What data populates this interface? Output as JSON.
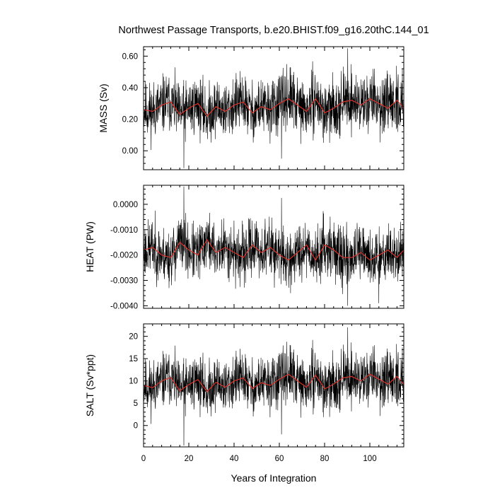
{
  "title": "Northwest Passage Transports, b.e20.BHIST.f09_g16.20thC.144_01",
  "xlabel": "Years of Integration",
  "chart_data": [
    {
      "type": "line",
      "panel": "mass",
      "ylabel": "MASS (Sv)",
      "ylim": [
        -0.12,
        0.66
      ],
      "yticks": [
        0.0,
        0.2,
        0.4,
        0.6
      ],
      "ytick_labels": [
        "0.00",
        "0.20",
        "0.40",
        "0.60"
      ],
      "xlim": [
        0,
        115
      ],
      "xticks": [
        0,
        20,
        40,
        60,
        80,
        100
      ],
      "xtick_labels": [
        "0",
        "20",
        "40",
        "60",
        "80",
        "100"
      ],
      "series": [
        {
          "role": "monthly",
          "color": "#000000",
          "mean": 0.27,
          "amplitude": 0.09,
          "x_start": 0,
          "x_end": 115,
          "x_step": 0.0833,
          "noise_seed": 11,
          "spikes": [
            {
              "x": 17.8,
              "y": -0.11
            },
            {
              "x": 61.0,
              "y": -0.05
            },
            {
              "x": 90.2,
              "y": 0.65
            },
            {
              "x": 65.0,
              "y": 0.53
            },
            {
              "x": 102.0,
              "y": 0.52
            }
          ]
        },
        {
          "role": "smoothed",
          "color": "#d8322b",
          "x": [
            0,
            4,
            8,
            12,
            16,
            20,
            24,
            28,
            32,
            36,
            40,
            44,
            48,
            52,
            56,
            60,
            64,
            68,
            72,
            76,
            80,
            84,
            88,
            92,
            96,
            100,
            104,
            108,
            112,
            115
          ],
          "y": [
            0.26,
            0.25,
            0.29,
            0.31,
            0.23,
            0.27,
            0.3,
            0.22,
            0.28,
            0.25,
            0.29,
            0.31,
            0.24,
            0.28,
            0.26,
            0.3,
            0.33,
            0.29,
            0.25,
            0.33,
            0.24,
            0.27,
            0.31,
            0.32,
            0.29,
            0.33,
            0.3,
            0.27,
            0.32,
            0.27
          ]
        }
      ]
    },
    {
      "type": "line",
      "panel": "heat",
      "ylabel": "HEAT (PW)",
      "ylim": [
        -0.0041,
        0.00075
      ],
      "yticks": [
        -0.004,
        -0.003,
        -0.002,
        -0.001,
        0.0
      ],
      "ytick_labels": [
        "-0.0040",
        "-0.0030",
        "-0.0020",
        "-0.0010",
        "0.0000"
      ],
      "xlim": [
        0,
        115
      ],
      "xticks": [
        0,
        20,
        40,
        60,
        80,
        100
      ],
      "xtick_labels": [
        "0",
        "20",
        "40",
        "60",
        "80",
        "100"
      ],
      "series": [
        {
          "role": "monthly",
          "color": "#000000",
          "mean": -0.0018,
          "amplitude": 0.00055,
          "x_start": 0,
          "x_end": 115,
          "x_step": 0.0833,
          "noise_seed": 23,
          "spikes": [
            {
              "x": 17.8,
              "y": 0.0007
            },
            {
              "x": 61.0,
              "y": 0.00025
            },
            {
              "x": 90.2,
              "y": -0.004
            },
            {
              "x": 104.0,
              "y": -0.0039
            },
            {
              "x": 65.0,
              "y": -0.0035
            }
          ]
        },
        {
          "role": "smoothed",
          "color": "#d8322b",
          "x": [
            0,
            4,
            8,
            12,
            16,
            20,
            24,
            28,
            32,
            36,
            40,
            44,
            48,
            52,
            56,
            60,
            64,
            68,
            72,
            76,
            80,
            84,
            88,
            92,
            96,
            100,
            104,
            108,
            112,
            115
          ],
          "y": [
            -0.0018,
            -0.0017,
            -0.002,
            -0.0021,
            -0.0015,
            -0.0018,
            -0.002,
            -0.0014,
            -0.0019,
            -0.0017,
            -0.0019,
            -0.0021,
            -0.0016,
            -0.0019,
            -0.0017,
            -0.002,
            -0.0022,
            -0.0019,
            -0.0016,
            -0.0022,
            -0.0016,
            -0.0018,
            -0.0021,
            -0.0021,
            -0.0019,
            -0.0022,
            -0.002,
            -0.0018,
            -0.0021,
            -0.0018
          ]
        }
      ]
    },
    {
      "type": "line",
      "panel": "salt",
      "ylabel": "SALT (Sv*ppt)",
      "ylim": [
        -4.8,
        22.8
      ],
      "yticks": [
        0,
        5,
        10,
        15,
        20
      ],
      "ytick_labels": [
        "0",
        "5",
        "10",
        "15",
        "20"
      ],
      "xlim": [
        0,
        115
      ],
      "xticks": [
        0,
        20,
        40,
        60,
        80,
        100
      ],
      "xtick_labels": [
        "0",
        "20",
        "40",
        "60",
        "80",
        "100"
      ],
      "series": [
        {
          "role": "monthly",
          "color": "#000000",
          "mean": 9.3,
          "amplitude": 3.0,
          "x_start": 0,
          "x_end": 115,
          "x_step": 0.0833,
          "noise_seed": 11,
          "spikes": [
            {
              "x": 17.8,
              "y": -4.5
            },
            {
              "x": 61.0,
              "y": -2.0
            },
            {
              "x": 90.2,
              "y": 22.0
            },
            {
              "x": 65.0,
              "y": 18.0
            },
            {
              "x": 102.0,
              "y": 18.0
            }
          ]
        },
        {
          "role": "smoothed",
          "color": "#d8322b",
          "x": [
            0,
            4,
            8,
            12,
            16,
            20,
            24,
            28,
            32,
            36,
            40,
            44,
            48,
            52,
            56,
            60,
            64,
            68,
            72,
            76,
            80,
            84,
            88,
            92,
            96,
            100,
            104,
            108,
            112,
            115
          ],
          "y": [
            9.0,
            8.5,
            10.0,
            10.8,
            7.8,
            9.2,
            10.3,
            7.6,
            9.7,
            8.6,
            10.0,
            10.7,
            8.3,
            9.6,
            9.0,
            10.4,
            11.5,
            10.0,
            8.6,
            11.3,
            8.2,
            9.3,
            10.7,
            11.0,
            10.0,
            11.5,
            10.4,
            9.3,
            11.0,
            9.2
          ]
        }
      ]
    }
  ]
}
